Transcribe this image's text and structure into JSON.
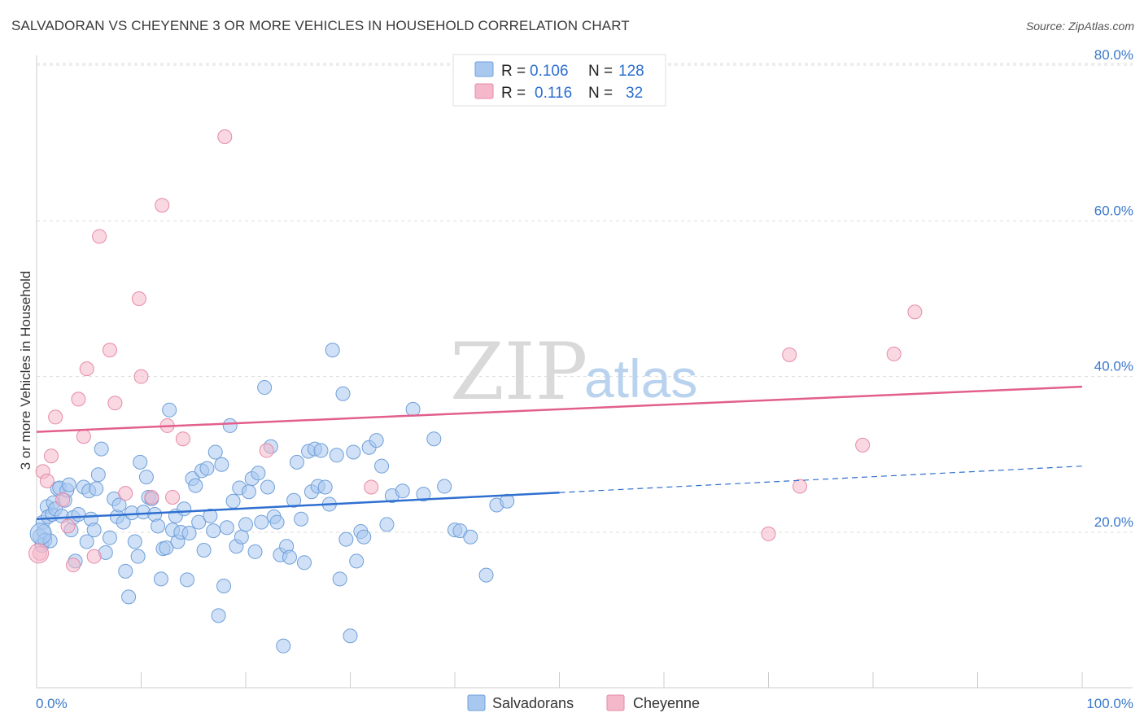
{
  "header": {
    "title": "SALVADORAN VS CHEYENNE 3 OR MORE VEHICLES IN HOUSEHOLD CORRELATION CHART",
    "source": "Source: ZipAtlas.com"
  },
  "stats": [
    {
      "r_label": "R =",
      "r_value": "0.106",
      "n_label": "N =",
      "n_value": "128",
      "color": "#a9c8f0"
    },
    {
      "r_label": "R =",
      "r_value": "0.116",
      "n_label": "N =",
      "n_value": "32",
      "color": "#f5b8cb"
    }
  ],
  "watermark": {
    "zip": "ZIP",
    "atlas": "atlas"
  },
  "chart_data": {
    "type": "scatter",
    "title": "SALVADORAN VS CHEYENNE 3 OR MORE VEHICLES IN HOUSEHOLD CORRELATION CHART",
    "xlabel": "",
    "ylabel": "3 or more Vehicles in Household",
    "xlim": [
      0,
      100
    ],
    "ylim": [
      0,
      85
    ],
    "x_tick_labels": [
      "0.0%",
      "100.0%"
    ],
    "y_ticks": [
      {
        "value": 20,
        "label": "20.0%"
      },
      {
        "value": 40,
        "label": "40.0%"
      },
      {
        "value": 60,
        "label": "60.0%"
      },
      {
        "value": 80,
        "label": "80.0%"
      }
    ],
    "grid": true,
    "legend_position": "bottom-center",
    "series": [
      {
        "name": "Salvadorans",
        "color": "#a9c8f0",
        "edge": "#6f9fd8",
        "trend": {
          "x0": 0,
          "y0": 21.7,
          "x1": 50,
          "y1": 25.1,
          "x_dash_end": 100,
          "y_dash_end": 28.5,
          "color": "#2f6fd0"
        },
        "points": [
          [
            0.3,
            19.5
          ],
          [
            0.5,
            18.3
          ],
          [
            0.6,
            21.3
          ],
          [
            0.7,
            20.1
          ],
          [
            0.8,
            19.0
          ],
          [
            1.0,
            23.3
          ],
          [
            1.1,
            22.0
          ],
          [
            1.3,
            18.9
          ],
          [
            1.5,
            22.3
          ],
          [
            1.6,
            23.8
          ],
          [
            1.8,
            23.0
          ],
          [
            2.0,
            25.6
          ],
          [
            2.2,
            25.7
          ],
          [
            2.4,
            22.1
          ],
          [
            2.7,
            24.1
          ],
          [
            2.9,
            25.4
          ],
          [
            3.1,
            26.1
          ],
          [
            3.3,
            20.3
          ],
          [
            3.5,
            21.9
          ],
          [
            3.7,
            16.3
          ],
          [
            4.0,
            22.3
          ],
          [
            4.5,
            25.8
          ],
          [
            4.8,
            18.8
          ],
          [
            5.0,
            25.3
          ],
          [
            5.2,
            21.7
          ],
          [
            5.5,
            20.3
          ],
          [
            5.7,
            25.6
          ],
          [
            5.9,
            27.4
          ],
          [
            6.2,
            30.7
          ],
          [
            6.6,
            17.4
          ],
          [
            7.0,
            19.3
          ],
          [
            7.4,
            24.3
          ],
          [
            7.7,
            22.0
          ],
          [
            7.9,
            23.5
          ],
          [
            8.3,
            21.3
          ],
          [
            8.5,
            15.0
          ],
          [
            8.8,
            11.7
          ],
          [
            9.1,
            22.5
          ],
          [
            9.4,
            18.8
          ],
          [
            9.7,
            16.9
          ],
          [
            9.9,
            29.0
          ],
          [
            10.2,
            22.6
          ],
          [
            10.5,
            27.1
          ],
          [
            10.7,
            24.5
          ],
          [
            11.0,
            24.3
          ],
          [
            11.3,
            22.3
          ],
          [
            11.6,
            20.8
          ],
          [
            11.9,
            14.0
          ],
          [
            12.1,
            17.9
          ],
          [
            12.4,
            18.0
          ],
          [
            12.7,
            35.7
          ],
          [
            13.0,
            20.3
          ],
          [
            13.3,
            22.1
          ],
          [
            13.5,
            18.8
          ],
          [
            13.8,
            20.0
          ],
          [
            14.1,
            23.0
          ],
          [
            14.4,
            13.9
          ],
          [
            14.6,
            19.9
          ],
          [
            14.9,
            26.9
          ],
          [
            15.2,
            26.0
          ],
          [
            15.5,
            21.3
          ],
          [
            15.8,
            27.9
          ],
          [
            16.0,
            17.7
          ],
          [
            16.3,
            28.2
          ],
          [
            16.6,
            22.1
          ],
          [
            16.9,
            20.2
          ],
          [
            17.1,
            30.3
          ],
          [
            17.4,
            9.3
          ],
          [
            17.7,
            28.7
          ],
          [
            17.9,
            13.1
          ],
          [
            18.2,
            20.6
          ],
          [
            18.5,
            33.7
          ],
          [
            18.8,
            24.0
          ],
          [
            19.1,
            18.2
          ],
          [
            19.4,
            25.7
          ],
          [
            19.6,
            19.4
          ],
          [
            20.0,
            21.0
          ],
          [
            20.3,
            25.2
          ],
          [
            20.6,
            26.9
          ],
          [
            20.9,
            17.5
          ],
          [
            21.2,
            27.6
          ],
          [
            21.5,
            21.3
          ],
          [
            21.8,
            38.6
          ],
          [
            22.1,
            25.8
          ],
          [
            22.4,
            31.0
          ],
          [
            22.7,
            22.0
          ],
          [
            23.0,
            21.3
          ],
          [
            23.3,
            17.1
          ],
          [
            23.6,
            5.4
          ],
          [
            23.9,
            18.2
          ],
          [
            24.2,
            16.8
          ],
          [
            24.6,
            24.1
          ],
          [
            24.9,
            29.0
          ],
          [
            25.3,
            21.7
          ],
          [
            25.6,
            16.1
          ],
          [
            26.0,
            30.4
          ],
          [
            26.3,
            25.2
          ],
          [
            26.6,
            30.7
          ],
          [
            26.9,
            25.9
          ],
          [
            27.2,
            30.5
          ],
          [
            27.6,
            25.8
          ],
          [
            28.0,
            23.6
          ],
          [
            28.3,
            43.4
          ],
          [
            28.7,
            29.9
          ],
          [
            29.0,
            14.0
          ],
          [
            29.3,
            37.8
          ],
          [
            29.6,
            19.1
          ],
          [
            30.0,
            6.7
          ],
          [
            30.3,
            30.3
          ],
          [
            30.6,
            16.3
          ],
          [
            31.0,
            20.1
          ],
          [
            31.3,
            19.4
          ],
          [
            31.8,
            30.9
          ],
          [
            32.5,
            31.8
          ],
          [
            33.0,
            28.5
          ],
          [
            33.5,
            21.0
          ],
          [
            34.0,
            24.7
          ],
          [
            35.0,
            25.3
          ],
          [
            36.0,
            35.8
          ],
          [
            37.0,
            24.9
          ],
          [
            38.0,
            32.0
          ],
          [
            39.0,
            25.9
          ],
          [
            40.0,
            20.3
          ],
          [
            40.5,
            20.2
          ],
          [
            41.5,
            19.4
          ],
          [
            43.0,
            14.5
          ],
          [
            44.0,
            23.5
          ],
          [
            45.0,
            24.0
          ]
        ]
      },
      {
        "name": "Cheyenne",
        "color": "#f5b8cb",
        "edge": "#e58aa8",
        "trend": {
          "x0": 0,
          "y0": 32.9,
          "x1": 100,
          "y1": 38.7,
          "color": "#e25f8d"
        },
        "points": [
          [
            0.3,
            17.3
          ],
          [
            0.6,
            27.8
          ],
          [
            1.0,
            26.6
          ],
          [
            1.4,
            29.8
          ],
          [
            1.8,
            34.8
          ],
          [
            2.5,
            24.2
          ],
          [
            3.0,
            20.8
          ],
          [
            3.5,
            15.8
          ],
          [
            4.0,
            37.1
          ],
          [
            4.5,
            32.3
          ],
          [
            4.8,
            41.0
          ],
          [
            5.5,
            16.9
          ],
          [
            6.0,
            58.0
          ],
          [
            7.0,
            43.4
          ],
          [
            7.5,
            36.6
          ],
          [
            8.5,
            25.0
          ],
          [
            9.8,
            50.0
          ],
          [
            10.0,
            40.0
          ],
          [
            11.0,
            24.5
          ],
          [
            12.0,
            62.0
          ],
          [
            12.5,
            33.7
          ],
          [
            13.0,
            24.5
          ],
          [
            14.0,
            32.0
          ],
          [
            18.0,
            70.8
          ],
          [
            22.0,
            30.5
          ],
          [
            32.0,
            25.8
          ],
          [
            70.0,
            19.8
          ],
          [
            72.0,
            42.8
          ],
          [
            73.0,
            25.9
          ],
          [
            79.0,
            31.2
          ],
          [
            82.0,
            42.9
          ],
          [
            84.0,
            48.3
          ]
        ]
      }
    ]
  }
}
